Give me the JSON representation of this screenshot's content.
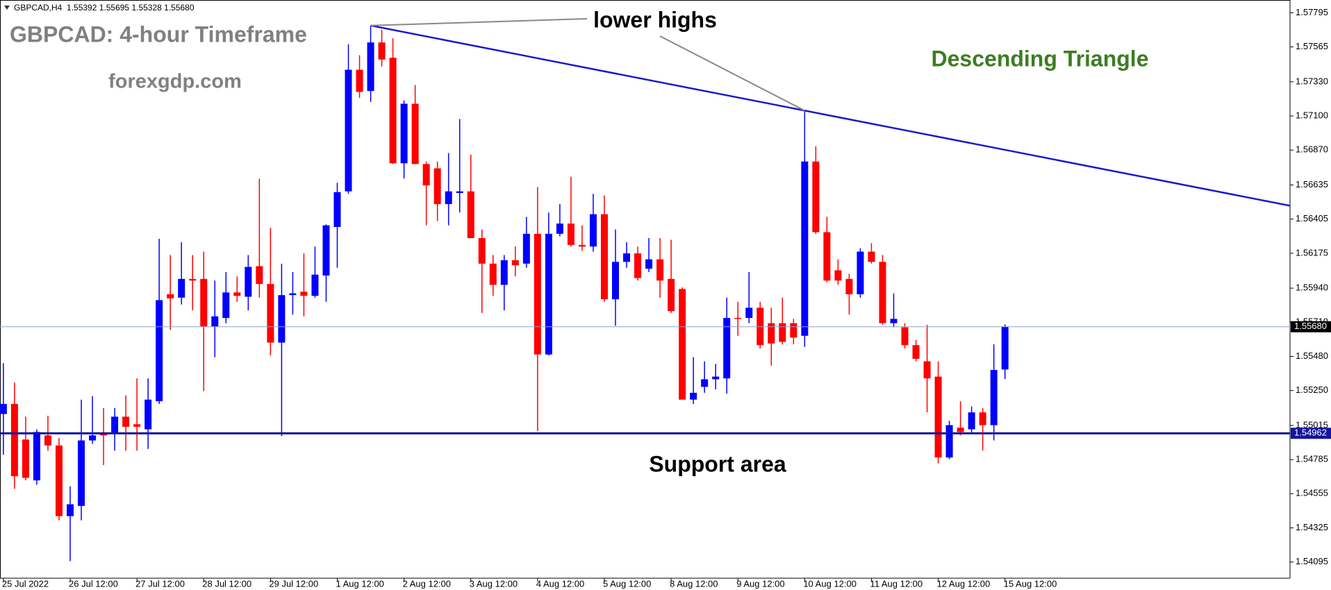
{
  "chart_data": {
    "type": "candlestick",
    "header": "GBPCAD,H4  1.55392 1.55695 1.55328 1.55680",
    "title": "GBPCAD: 4-hour Timeframe",
    "source": "forexgdp.com",
    "annotations": [
      "lower highs",
      "Descending Triangle",
      "Support area"
    ],
    "up_color": "#0000ff",
    "down_color": "#ff0000",
    "categories": [
      "25 Jul 2022",
      null,
      null,
      null,
      null,
      null,
      "26 Jul 12:00",
      null,
      null,
      null,
      null,
      null,
      "27 Jul 12:00",
      null,
      null,
      null,
      null,
      null,
      "28 Jul 12:00",
      null,
      null,
      null,
      null,
      null,
      "29 Jul 12:00",
      null,
      null,
      null,
      null,
      null,
      "1 Aug 12:00",
      null,
      null,
      null,
      null,
      null,
      "2 Aug 12:00",
      null,
      null,
      null,
      null,
      null,
      "3 Aug 12:00",
      null,
      null,
      null,
      null,
      null,
      "4 Aug 12:00",
      null,
      null,
      null,
      null,
      null,
      "5 Aug 12:00",
      null,
      null,
      null,
      null,
      null,
      "8 Aug 12:00",
      null,
      null,
      null,
      null,
      null,
      "9 Aug 12:00",
      null,
      null,
      null,
      null,
      null,
      "10 Aug 12:00",
      null,
      null,
      null,
      null,
      null,
      "11 Aug 12:00",
      null,
      null,
      null,
      null,
      null,
      "12 Aug 12:00",
      null,
      null,
      null,
      null,
      null,
      "15 Aug 12:00"
    ],
    "open": [
      1.55092,
      1.5516,
      1.5492,
      1.54645,
      1.54948,
      1.5488,
      1.54404,
      1.54473,
      1.54914,
      1.5496,
      1.5496,
      1.55074,
      1.55023,
      1.54989,
      1.55178,
      1.55899,
      1.55876,
      1.56002,
      1.56002,
      1.55682,
      1.55739,
      1.55911,
      1.55882,
      1.56088,
      1.55968,
      1.55573,
      1.55893,
      1.55916,
      1.55888,
      1.56025,
      1.56352,
      1.56592,
      1.57411,
      1.57268,
      1.57595,
      1.57492,
      1.56781,
      1.57182,
      1.56776,
      1.56747,
      1.56506,
      1.56581,
      1.56592,
      1.56277,
      1.56105,
      1.55962,
      1.56128,
      1.56105,
      1.56306,
      1.55493,
      1.56306,
      1.56375,
      1.56231,
      1.5622,
      1.56438,
      1.55865,
      1.56117,
      1.56174,
      1.56071,
      1.56134,
      1.56002,
      1.55934,
      1.55189,
      1.55275,
      1.55326,
      1.55332,
      1.55739,
      1.55739,
      1.55808,
      1.55704,
      1.55704,
      1.55704,
      1.55619,
      1.56793,
      1.56317,
      1.5606,
      1.56002,
      1.55899,
      1.56186,
      1.56117,
      1.55704,
      1.55676,
      1.55556,
      1.55447,
      1.55344,
      1.54799,
      1.55,
      1.54989,
      1.55103,
      1.55017,
      1.55392
    ],
    "high": [
      1.55435,
      1.55304,
      1.55074,
      1.54989,
      1.5508,
      1.54931,
      1.54605,
      1.55189,
      1.55212,
      1.55132,
      1.55132,
      1.55218,
      1.55332,
      1.55332,
      1.56272,
      1.56163,
      1.56249,
      1.56163,
      1.56186,
      1.55991,
      1.56048,
      1.56019,
      1.56163,
      1.56678,
      1.56346,
      1.56105,
      1.56048,
      1.56174,
      1.5622,
      1.56369,
      1.5665,
      1.57583,
      1.57509,
      1.57709,
      1.57681,
      1.57623,
      1.57205,
      1.57308,
      1.56793,
      1.56793,
      1.5685,
      1.57079,
      1.56839,
      1.56335,
      1.56163,
      1.56163,
      1.5622,
      1.5642,
      1.56621,
      1.56449,
      1.56506,
      1.5669,
      1.56363,
      1.56575,
      1.56564,
      1.56335,
      1.56249,
      1.5622,
      1.56277,
      1.56277,
      1.56266,
      1.55945,
      1.55475,
      1.55447,
      1.5543,
      1.55876,
      1.55848,
      1.56048,
      1.55848,
      1.55808,
      1.55876,
      1.55733,
      1.57136,
      1.56896,
      1.5642,
      1.56134,
      1.56037,
      1.56209,
      1.56243,
      1.56163,
      1.55905,
      1.55704,
      1.5559,
      1.55693,
      1.55447,
      1.55046,
      1.55178,
      1.55143,
      1.55132,
      1.55561,
      1.55695
    ],
    "low": [
      1.54817,
      1.54588,
      1.54645,
      1.54616,
      1.54845,
      1.54376,
      1.54101,
      1.54376,
      1.54891,
      1.54748,
      1.54845,
      1.54845,
      1.54845,
      1.54857,
      1.5516,
      1.55659,
      1.5583,
      1.5579,
      1.55246,
      1.55475,
      1.55704,
      1.55848,
      1.5579,
      1.55876,
      1.55487,
      1.54943,
      1.55762,
      1.5575,
      1.55876,
      1.55848,
      1.56077,
      1.56575,
      1.57222,
      1.57194,
      1.57434,
      1.56776,
      1.56678,
      1.56776,
      1.56363,
      1.56392,
      1.56363,
      1.56449,
      1.56277,
      1.55773,
      1.55888,
      1.5579,
      1.56019,
      1.56077,
      1.54977,
      1.55487,
      1.56289,
      1.5622,
      1.56191,
      1.56186,
      1.55848,
      1.55687,
      1.56077,
      1.55991,
      1.56048,
      1.55876,
      1.55773,
      1.55189,
      1.5516,
      1.55235,
      1.55258,
      1.55229,
      1.55619,
      1.55704,
      1.55533,
      1.55418,
      1.55561,
      1.55561,
      1.55544,
      1.56306,
      1.55979,
      1.55962,
      1.55762,
      1.55876,
      1.56105,
      1.55693,
      1.55676,
      1.55533,
      1.55447,
      1.55103,
      1.54759,
      1.54788,
      1.54948,
      1.5496,
      1.54845,
      1.54914,
      1.55328
    ],
    "close": [
      1.5516,
      1.54673,
      1.54662,
      1.54971,
      1.5488,
      1.54404,
      1.54484,
      1.54914,
      1.54948,
      1.54948,
      1.55074,
      1.55006,
      1.55006,
      1.55189,
      1.55859,
      1.55871,
      1.56002,
      1.55991,
      1.55682,
      1.5575,
      1.55911,
      1.55888,
      1.56083,
      1.55968,
      1.55573,
      1.55893,
      1.55905,
      1.55888,
      1.56031,
      1.56363,
      1.56587,
      1.57411,
      1.57262,
      1.57595,
      1.5748,
      1.56781,
      1.57182,
      1.56776,
      1.56632,
      1.56506,
      1.56592,
      1.56592,
      1.56277,
      1.56105,
      1.55962,
      1.56128,
      1.56094,
      1.56306,
      1.55493,
      1.56306,
      1.56375,
      1.56231,
      1.5622,
      1.56438,
      1.55865,
      1.56117,
      1.56174,
      1.56008,
      1.56134,
      1.55991,
      1.55785,
      1.55189,
      1.55235,
      1.55326,
      1.55344,
      1.55739,
      1.55733,
      1.55808,
      1.55556,
      1.55567,
      1.55578,
      1.55607,
      1.56793,
      1.56317,
      1.55991,
      1.55991,
      1.55899,
      1.56186,
      1.56117,
      1.55704,
      1.55733,
      1.55556,
      1.55464,
      1.55332,
      1.54799,
      1.55017,
      1.54971,
      1.55103,
      1.55017,
      1.55389,
      1.5568
    ],
    "trendline": {
      "color": "#1a1acd",
      "x": [
        33,
        72
      ],
      "y": [
        1.57709,
        1.57136
      ]
    },
    "price_lines": [
      {
        "value": 1.5568,
        "label": "1.55680",
        "color": "#8ea3cc"
      },
      {
        "value": 1.54962,
        "color": "#1414a0"
      }
    ],
    "ylim": [
      1.53986,
      1.57881
    ],
    "yticks": [
      1.57795,
      1.57565,
      {
        "value": 1.5733,
        "label": "1.57330"
      },
      {
        "value": 1.571,
        "label": "1.57100"
      },
      {
        "value": 1.5687,
        "label": "1.56870"
      },
      1.56635,
      1.56405,
      1.56175,
      {
        "value": 1.5594,
        "label": "1.55940"
      },
      {
        "value": 1.5571,
        "label": "1.55710"
      },
      {
        "value": 1.5548,
        "label": "1.55480"
      },
      {
        "value": 1.5525,
        "label": "1.55250"
      },
      1.55015,
      1.54785,
      1.54555,
      1.54325,
      1.54095
    ]
  }
}
